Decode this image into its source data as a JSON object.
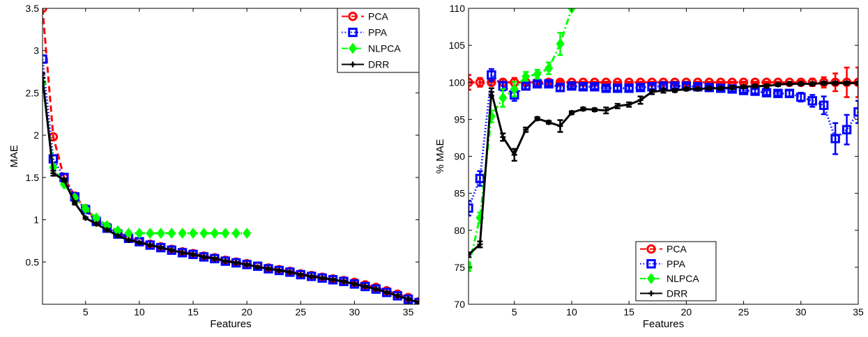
{
  "chart_data": [
    {
      "type": "line",
      "xlabel": "Features",
      "ylabel": "MAE",
      "xlim": [
        1,
        36
      ],
      "ylim": [
        0,
        3.5
      ],
      "xticks": [
        5,
        10,
        15,
        20,
        25,
        30,
        35
      ],
      "yticks": [
        0.5,
        1,
        1.5,
        2,
        2.5,
        3,
        3.5
      ],
      "ytick_labels": [
        "0.5",
        "1",
        "1.5",
        "2",
        "2.5",
        "3",
        "3.5"
      ],
      "grid": false,
      "legend_position": "top-right",
      "series": [
        {
          "name": "PCA",
          "color": "#ff0000",
          "line_style": "dashed",
          "marker": "circle",
          "x": [
            1,
            2,
            3,
            4,
            5,
            6,
            7,
            8,
            9,
            10,
            11,
            12,
            13,
            14,
            15,
            16,
            17,
            18,
            19,
            20,
            21,
            22,
            23,
            24,
            25,
            26,
            27,
            28,
            29,
            30,
            31,
            32,
            33,
            34,
            35,
            36
          ],
          "y": [
            3.5,
            1.98,
            1.5,
            1.28,
            1.13,
            1.0,
            0.92,
            0.85,
            0.79,
            0.74,
            0.71,
            0.68,
            0.65,
            0.62,
            0.6,
            0.57,
            0.55,
            0.52,
            0.5,
            0.48,
            0.45,
            0.43,
            0.41,
            0.39,
            0.36,
            0.34,
            0.32,
            0.3,
            0.28,
            0.26,
            0.23,
            0.2,
            0.16,
            0.12,
            0.08,
            0.03
          ]
        },
        {
          "name": "PPA",
          "color": "#0000ff",
          "line_style": "dotted",
          "marker": "square",
          "x": [
            1,
            2,
            3,
            4,
            5,
            6,
            7,
            8,
            9,
            10,
            11,
            12,
            13,
            14,
            15,
            16,
            17,
            18,
            19,
            20,
            21,
            22,
            23,
            24,
            25,
            26,
            27,
            28,
            29,
            30,
            31,
            32,
            33,
            34,
            35,
            36
          ],
          "y": [
            2.9,
            1.72,
            1.5,
            1.27,
            1.12,
            0.98,
            0.9,
            0.83,
            0.78,
            0.74,
            0.7,
            0.67,
            0.64,
            0.61,
            0.59,
            0.56,
            0.54,
            0.51,
            0.49,
            0.47,
            0.45,
            0.42,
            0.4,
            0.38,
            0.35,
            0.33,
            0.31,
            0.29,
            0.27,
            0.24,
            0.21,
            0.18,
            0.14,
            0.1,
            0.06,
            0.02
          ]
        },
        {
          "name": "NLPCA",
          "color": "#00ff00",
          "line_style": "dash-dot",
          "marker": "diamond",
          "x": [
            1,
            2,
            3,
            4,
            5,
            6,
            7,
            8,
            9,
            10,
            11,
            12,
            13,
            14,
            15,
            16,
            17,
            18,
            19,
            20
          ],
          "y": [
            2.62,
            1.62,
            1.42,
            1.26,
            1.13,
            1.02,
            0.93,
            0.87,
            0.84,
            0.84,
            0.84,
            0.84,
            0.84,
            0.84,
            0.84,
            0.84,
            0.84,
            0.84,
            0.84,
            0.84
          ]
        },
        {
          "name": "DRR",
          "color": "#000000",
          "line_style": "solid",
          "marker": "plus",
          "x": [
            1,
            2,
            3,
            4,
            5,
            6,
            7,
            8,
            9,
            10,
            11,
            12,
            13,
            14,
            15,
            16,
            17,
            18,
            19,
            20,
            21,
            22,
            23,
            24,
            25,
            26,
            27,
            28,
            29,
            30,
            31,
            32,
            33,
            34,
            35,
            36
          ],
          "y": [
            2.68,
            1.55,
            1.47,
            1.2,
            1.02,
            0.95,
            0.88,
            0.81,
            0.76,
            0.73,
            0.7,
            0.67,
            0.64,
            0.61,
            0.59,
            0.56,
            0.54,
            0.51,
            0.49,
            0.47,
            0.44,
            0.42,
            0.4,
            0.38,
            0.35,
            0.33,
            0.31,
            0.29,
            0.27,
            0.24,
            0.21,
            0.18,
            0.14,
            0.1,
            0.06,
            0.02
          ],
          "err": [
            0.05,
            0.03,
            0.02,
            0.02,
            0.01,
            0.01,
            0.01,
            0.01,
            0.01,
            0.01,
            0.01,
            0.01,
            0.01,
            0.01,
            0.01,
            0.01,
            0.01,
            0.01,
            0.01,
            0.01,
            0.01,
            0.01,
            0.01,
            0.01,
            0.01,
            0.01,
            0.01,
            0.01,
            0.01,
            0.01,
            0.01,
            0.01,
            0.01,
            0.01,
            0.01,
            0.01
          ]
        }
      ]
    },
    {
      "type": "line",
      "xlabel": "Features",
      "ylabel": "% MAE",
      "xlim": [
        1,
        35
      ],
      "ylim": [
        70,
        110
      ],
      "xticks": [
        5,
        10,
        15,
        20,
        25,
        30,
        35
      ],
      "yticks": [
        70,
        75,
        80,
        85,
        90,
        95,
        100,
        105,
        110
      ],
      "ytick_labels": [
        "70",
        "75",
        "80",
        "85",
        "90",
        "95",
        "100",
        "105",
        "110"
      ],
      "grid": false,
      "legend_position": "bottom-center",
      "series": [
        {
          "name": "PCA",
          "color": "#ff0000",
          "line_style": "dashed",
          "marker": "circle",
          "x": [
            1,
            2,
            3,
            4,
            5,
            6,
            7,
            8,
            9,
            10,
            11,
            12,
            13,
            14,
            15,
            16,
            17,
            18,
            19,
            20,
            21,
            22,
            23,
            24,
            25,
            26,
            27,
            28,
            29,
            30,
            31,
            32,
            33,
            34,
            35
          ],
          "y": [
            100,
            100,
            100,
            100,
            100,
            100,
            100,
            100,
            100,
            100,
            100,
            100,
            100,
            100,
            100,
            100,
            100,
            100,
            100,
            100,
            100,
            100,
            100,
            100,
            100,
            100,
            100,
            100,
            100,
            100,
            100,
            100,
            100,
            100,
            100
          ],
          "err": [
            1.0,
            0.6,
            0.4,
            0.4,
            0.6,
            0.3,
            0.2,
            0.2,
            0.2,
            0.1,
            0.1,
            0.1,
            0.1,
            0.1,
            0.1,
            0.1,
            0.1,
            0.1,
            0.1,
            0.1,
            0.1,
            0.1,
            0.1,
            0.1,
            0.1,
            0.1,
            0.1,
            0.1,
            0.1,
            0.2,
            0.5,
            0.7,
            1.2,
            2.0,
            2.0
          ]
        },
        {
          "name": "PPA",
          "color": "#0000ff",
          "line_style": "dotted",
          "marker": "square",
          "x": [
            1,
            2,
            3,
            4,
            5,
            6,
            7,
            8,
            9,
            10,
            11,
            12,
            13,
            14,
            15,
            16,
            17,
            18,
            19,
            20,
            21,
            22,
            23,
            24,
            25,
            26,
            27,
            28,
            29,
            30,
            31,
            32,
            33,
            34,
            35
          ],
          "y": [
            83,
            87,
            101,
            99.5,
            98.3,
            99.5,
            99.8,
            99.8,
            99.3,
            99.5,
            99.4,
            99.4,
            99.2,
            99.2,
            99.2,
            99.3,
            99.4,
            99.5,
            99.5,
            99.5,
            99.4,
            99.3,
            99.2,
            99.1,
            98.9,
            98.8,
            98.6,
            98.5,
            98.5,
            98.0,
            97.5,
            96.9,
            92.4,
            93.6,
            96.0
          ],
          "err": [
            1.0,
            1.0,
            0.8,
            0.6,
            0.8,
            0.4,
            0.3,
            0.3,
            0.4,
            0.3,
            0.3,
            0.3,
            0.3,
            0.3,
            0.3,
            0.3,
            0.3,
            0.3,
            0.3,
            0.3,
            0.3,
            0.3,
            0.3,
            0.3,
            0.3,
            0.3,
            0.3,
            0.3,
            0.4,
            0.6,
            0.8,
            1.2,
            2.1,
            2.0,
            1.5
          ]
        },
        {
          "name": "NLPCA",
          "color": "#00ff00",
          "line_style": "dash-dot",
          "marker": "diamond",
          "x": [
            1,
            2,
            3,
            4,
            5,
            6,
            7,
            8,
            9,
            10
          ],
          "y": [
            75,
            81.7,
            95.4,
            97.9,
            99.1,
            100.8,
            101.1,
            101.9,
            105.2,
            110
          ],
          "err": [
            0.5,
            0.7,
            0.8,
            1.2,
            1.0,
            0.6,
            0.6,
            0.8,
            1.5,
            0
          ]
        },
        {
          "name": "DRR",
          "color": "#000000",
          "line_style": "solid",
          "marker": "plus",
          "x": [
            1,
            2,
            3,
            4,
            5,
            6,
            7,
            8,
            9,
            10,
            11,
            12,
            13,
            14,
            15,
            16,
            17,
            18,
            19,
            20,
            21,
            22,
            23,
            24,
            25,
            26,
            27,
            28,
            29,
            30,
            31,
            32,
            33,
            34,
            35
          ],
          "y": [
            76.7,
            78.1,
            98.7,
            92.6,
            90.2,
            93.6,
            95.1,
            94.6,
            94.1,
            95.9,
            96.4,
            96.3,
            96.2,
            96.8,
            97.0,
            97.6,
            98.7,
            98.9,
            98.9,
            99.1,
            99.1,
            99.2,
            99.2,
            99.3,
            99.4,
            99.5,
            99.5,
            99.7,
            99.8,
            99.8,
            99.8,
            99.9,
            99.9,
            99.9,
            99.9
          ],
          "err": [
            0.3,
            0.4,
            0.5,
            0.5,
            0.8,
            0.3,
            0.2,
            0.2,
            0.8,
            0.2,
            0.2,
            0.2,
            0.4,
            0.3,
            0.3,
            0.5,
            0.3,
            0.3,
            0.2,
            0.2,
            0.2,
            0.2,
            0.2,
            0.2,
            0.2,
            0.2,
            0.2,
            0.2,
            0.2,
            0.2,
            0.2,
            0.2,
            0.2,
            0.2,
            0.2
          ]
        }
      ]
    }
  ]
}
